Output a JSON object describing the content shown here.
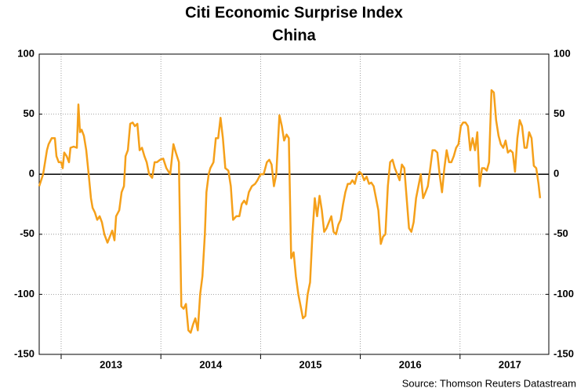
{
  "chart_data": {
    "type": "line",
    "title": "Citi Economic Surprise Index",
    "subtitle": "China",
    "source": "Source: Thomson Reuters Datastream",
    "xlim": [
      2012.78,
      2017.89
    ],
    "xticks": [
      2013,
      2014,
      2015,
      2016,
      2017
    ],
    "ylim": [
      -150,
      100
    ],
    "yticks": [
      -150,
      -100,
      -50,
      0,
      50,
      100
    ],
    "y2lim": [
      -150,
      100
    ],
    "y2ticks": [
      -150,
      -100,
      -50,
      0,
      50,
      100
    ],
    "grid": true,
    "series": [
      {
        "name": "China",
        "color": "#f5a01a",
        "x": [
          2012.78,
          2012.819,
          2012.858,
          2012.874,
          2012.906,
          2012.937,
          2012.953,
          2012.976,
          2013.0,
          2013.016,
          2013.031,
          2013.055,
          2013.079,
          2013.094,
          2013.126,
          2013.157,
          2013.173,
          2013.189,
          2013.205,
          2013.228,
          2013.252,
          2013.276,
          2013.299,
          2013.315,
          2013.339,
          2013.362,
          2013.386,
          2013.409,
          2013.433,
          2013.465,
          2013.488,
          2013.512,
          2013.535,
          2013.551,
          2013.583,
          2013.606,
          2013.63,
          2013.646,
          2013.669,
          2013.693,
          2013.717,
          2013.74,
          2013.764,
          2013.787,
          2013.811,
          2013.835,
          2013.858,
          2013.882,
          2013.913,
          2013.937,
          2013.961,
          2013.992,
          2014.024,
          2014.055,
          2014.094,
          2014.126,
          2014.15,
          2014.181,
          2014.205,
          2014.228,
          2014.252,
          2014.276,
          2014.299,
          2014.323,
          2014.346,
          2014.37,
          2014.394,
          2014.417,
          2014.441,
          2014.457,
          2014.48,
          2014.496,
          2014.528,
          2014.551,
          2014.575,
          2014.598,
          2014.622,
          2014.646,
          2014.677,
          2014.701,
          2014.724,
          2014.756,
          2014.787,
          2014.811,
          2014.835,
          2014.858,
          2014.882,
          2014.913,
          2014.945,
          2014.969,
          2015.0,
          2015.031,
          2015.063,
          2015.087,
          2015.11,
          2015.134,
          2015.157,
          2015.189,
          2015.213,
          2015.236,
          2015.26,
          2015.283,
          2015.307,
          2015.331,
          2015.354,
          2015.378,
          2015.402,
          2015.425,
          2015.449,
          2015.472,
          2015.496,
          2015.52,
          2015.543,
          2015.567,
          2015.591,
          2015.614,
          2015.638,
          2015.661,
          2015.685,
          2015.709,
          2015.732,
          2015.756,
          2015.78,
          2015.803,
          2015.827,
          2015.85,
          2015.874,
          2015.898,
          2015.921,
          2015.945,
          2015.969,
          2015.992,
          2016.016,
          2016.039,
          2016.063,
          2016.087,
          2016.11,
          2016.134,
          2016.157,
          2016.181,
          2016.205,
          2016.228,
          2016.252,
          2016.276,
          2016.299,
          2016.323,
          2016.346,
          2016.37,
          2016.394,
          2016.417,
          2016.441,
          2016.465,
          2016.488,
          2016.512,
          2016.535,
          2016.559,
          2016.583,
          2016.606,
          2016.63,
          2016.654,
          2016.677,
          2016.701,
          2016.724,
          2016.748,
          2016.772,
          2016.795,
          2016.819,
          2016.843,
          2016.866,
          2016.89,
          2016.913,
          2016.937,
          2016.961,
          2016.984,
          2017.008,
          2017.031,
          2017.055,
          2017.079,
          2017.102,
          2017.126,
          2017.15,
          2017.173,
          2017.197,
          2017.22,
          2017.244,
          2017.268,
          2017.291,
          2017.315,
          2017.339,
          2017.362,
          2017.386,
          2017.409,
          2017.433,
          2017.457,
          2017.48,
          2017.504,
          2017.528,
          2017.551,
          2017.575,
          2017.598,
          2017.622,
          2017.646,
          2017.669,
          2017.693,
          2017.717,
          2017.74,
          2017.764,
          2017.787,
          2017.803
        ],
        "values": [
          -10,
          0,
          20,
          25,
          30,
          30,
          15,
          10,
          10,
          5,
          18,
          15,
          10,
          22,
          23,
          22,
          58,
          35,
          37,
          32,
          20,
          0,
          -20,
          -28,
          -32,
          -38,
          -35,
          -40,
          -50,
          -57,
          -52,
          -47,
          -55,
          -35,
          -30,
          -15,
          -10,
          15,
          20,
          42,
          43,
          40,
          42,
          20,
          22,
          15,
          10,
          0,
          -3,
          10,
          10,
          12,
          13,
          5,
          0,
          25,
          18,
          10,
          -110,
          -112,
          -108,
          -130,
          -132,
          -125,
          -120,
          -130,
          -100,
          -85,
          -50,
          -15,
          0,
          5,
          10,
          30,
          30,
          47,
          30,
          5,
          3,
          -10,
          -38,
          -35,
          -35,
          -25,
          -22,
          -25,
          -15,
          -10,
          -8,
          -5,
          0,
          0,
          10,
          12,
          8,
          -10,
          0,
          49,
          40,
          28,
          33,
          30,
          -70,
          -65,
          -85,
          -100,
          -110,
          -120,
          -118,
          -100,
          -90,
          -50,
          -20,
          -35,
          -18,
          -30,
          -48,
          -45,
          -40,
          -35,
          -48,
          -50,
          -42,
          -38,
          -25,
          -15,
          -8,
          -8,
          -5,
          -8,
          0,
          2,
          0,
          -5,
          -2,
          -8,
          -7,
          -10,
          -20,
          -30,
          -58,
          -52,
          -50,
          -10,
          10,
          12,
          5,
          0,
          -5,
          8,
          5,
          -20,
          -45,
          -48,
          -40,
          -20,
          -10,
          0,
          -20,
          -15,
          -10,
          5,
          20,
          20,
          18,
          0,
          -15,
          5,
          20,
          10,
          10,
          15,
          22,
          25,
          40,
          43,
          43,
          40,
          20,
          30,
          20,
          35,
          -10,
          5,
          5,
          3,
          10,
          70,
          68,
          45,
          32,
          25,
          22,
          28,
          18,
          20,
          18,
          2,
          30,
          45,
          40,
          22,
          22,
          35,
          30,
          7,
          5,
          -8,
          -20
        ]
      }
    ]
  }
}
